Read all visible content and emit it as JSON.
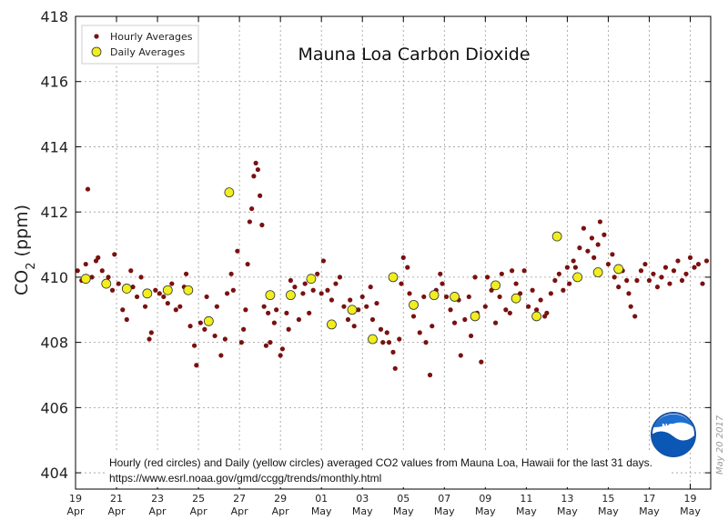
{
  "chart_data": {
    "type": "scatter",
    "title": "Mauna Loa Carbon Dioxide",
    "ylabel_main": "CO",
    "ylabel_sub": "2",
    "ylabel_unit": " (ppm)",
    "ylim": [
      403.5,
      418
    ],
    "yticks": [
      "404",
      "406",
      "408",
      "410",
      "412",
      "414",
      "416",
      "418"
    ],
    "xlim": [
      0,
      31
    ],
    "xticks": [
      {
        "day": "19",
        "month": "Apr"
      },
      {
        "day": "21",
        "month": "Apr"
      },
      {
        "day": "23",
        "month": "Apr"
      },
      {
        "day": "25",
        "month": "Apr"
      },
      {
        "day": "27",
        "month": "Apr"
      },
      {
        "day": "29",
        "month": "Apr"
      },
      {
        "day": "01",
        "month": "May"
      },
      {
        "day": "03",
        "month": "May"
      },
      {
        "day": "05",
        "month": "May"
      },
      {
        "day": "07",
        "month": "May"
      },
      {
        "day": "09",
        "month": "May"
      },
      {
        "day": "11",
        "month": "May"
      },
      {
        "day": "13",
        "month": "May"
      },
      {
        "day": "15",
        "month": "May"
      },
      {
        "day": "17",
        "month": "May"
      },
      {
        "day": "19",
        "month": "May"
      }
    ],
    "grid": true,
    "legend_position": "top-left",
    "colors": {
      "hourly": "#7a1010",
      "daily": "#f0ee1e"
    },
    "series": [
      {
        "name": "Hourly Averages",
        "points": [
          [
            0.1,
            410.2
          ],
          [
            0.3,
            409.9
          ],
          [
            0.5,
            410.4
          ],
          [
            0.6,
            412.7
          ],
          [
            0.8,
            410.0
          ],
          [
            1.0,
            410.5
          ],
          [
            1.1,
            410.6
          ],
          [
            1.3,
            410.2
          ],
          [
            1.6,
            410.0
          ],
          [
            1.8,
            409.6
          ],
          [
            1.9,
            410.7
          ],
          [
            2.1,
            409.8
          ],
          [
            2.3,
            409.0
          ],
          [
            2.5,
            408.7
          ],
          [
            2.7,
            410.2
          ],
          [
            2.8,
            409.7
          ],
          [
            3.0,
            409.4
          ],
          [
            3.2,
            410.0
          ],
          [
            3.4,
            409.1
          ],
          [
            3.6,
            408.1
          ],
          [
            3.7,
            408.3
          ],
          [
            3.9,
            409.6
          ],
          [
            4.1,
            409.5
          ],
          [
            4.3,
            409.4
          ],
          [
            4.5,
            409.2
          ],
          [
            4.7,
            409.8
          ],
          [
            4.9,
            409.0
          ],
          [
            5.1,
            409.1
          ],
          [
            5.3,
            409.7
          ],
          [
            5.4,
            410.1
          ],
          [
            5.6,
            408.5
          ],
          [
            5.8,
            407.9
          ],
          [
            5.9,
            407.3
          ],
          [
            6.1,
            408.6
          ],
          [
            6.3,
            408.4
          ],
          [
            6.4,
            409.4
          ],
          [
            6.6,
            408.7
          ],
          [
            6.8,
            408.2
          ],
          [
            6.9,
            409.1
          ],
          [
            7.1,
            407.6
          ],
          [
            7.3,
            408.1
          ],
          [
            7.4,
            409.5
          ],
          [
            7.6,
            410.1
          ],
          [
            7.7,
            409.6
          ],
          [
            7.9,
            410.8
          ],
          [
            8.1,
            408.0
          ],
          [
            8.2,
            408.4
          ],
          [
            8.3,
            409.0
          ],
          [
            8.4,
            410.4
          ],
          [
            8.5,
            411.7
          ],
          [
            8.6,
            412.1
          ],
          [
            8.7,
            413.1
          ],
          [
            8.8,
            413.5
          ],
          [
            8.9,
            413.3
          ],
          [
            9.0,
            412.5
          ],
          [
            9.1,
            411.6
          ],
          [
            9.2,
            409.1
          ],
          [
            9.3,
            407.9
          ],
          [
            9.4,
            408.9
          ],
          [
            9.5,
            408.0
          ],
          [
            9.7,
            408.6
          ],
          [
            9.8,
            409.0
          ],
          [
            10.0,
            407.6
          ],
          [
            10.1,
            407.8
          ],
          [
            10.3,
            408.9
          ],
          [
            10.4,
            408.4
          ],
          [
            10.5,
            409.9
          ],
          [
            10.7,
            409.7
          ],
          [
            10.9,
            408.7
          ],
          [
            11.1,
            409.5
          ],
          [
            11.2,
            409.8
          ],
          [
            11.4,
            408.9
          ],
          [
            11.6,
            409.6
          ],
          [
            11.8,
            410.1
          ],
          [
            12.0,
            409.5
          ],
          [
            12.1,
            410.5
          ],
          [
            12.3,
            409.6
          ],
          [
            12.5,
            409.3
          ],
          [
            12.7,
            409.8
          ],
          [
            12.9,
            410.0
          ],
          [
            13.1,
            409.1
          ],
          [
            13.3,
            408.7
          ],
          [
            13.4,
            409.3
          ],
          [
            13.6,
            408.5
          ],
          [
            13.8,
            409.0
          ],
          [
            14.0,
            409.4
          ],
          [
            14.2,
            409.1
          ],
          [
            14.4,
            409.7
          ],
          [
            14.5,
            408.7
          ],
          [
            14.7,
            409.2
          ],
          [
            14.9,
            408.4
          ],
          [
            15.0,
            408.0
          ],
          [
            15.2,
            408.3
          ],
          [
            15.3,
            408.0
          ],
          [
            15.5,
            407.7
          ],
          [
            15.6,
            407.2
          ],
          [
            15.8,
            408.1
          ],
          [
            15.9,
            409.8
          ],
          [
            16.0,
            410.6
          ],
          [
            16.2,
            410.3
          ],
          [
            16.3,
            409.5
          ],
          [
            16.5,
            408.8
          ],
          [
            16.6,
            409.2
          ],
          [
            16.8,
            408.3
          ],
          [
            17.0,
            409.4
          ],
          [
            17.1,
            408.0
          ],
          [
            17.3,
            407.0
          ],
          [
            17.4,
            408.5
          ],
          [
            17.6,
            409.6
          ],
          [
            17.8,
            410.1
          ],
          [
            17.9,
            409.8
          ],
          [
            18.1,
            409.4
          ],
          [
            18.3,
            409.0
          ],
          [
            18.5,
            408.6
          ],
          [
            18.7,
            409.3
          ],
          [
            18.8,
            407.6
          ],
          [
            19.0,
            408.7
          ],
          [
            19.2,
            409.4
          ],
          [
            19.3,
            408.2
          ],
          [
            19.5,
            410.0
          ],
          [
            19.6,
            408.9
          ],
          [
            19.8,
            407.4
          ],
          [
            20.0,
            409.1
          ],
          [
            20.1,
            410.0
          ],
          [
            20.3,
            409.6
          ],
          [
            20.5,
            408.6
          ],
          [
            20.7,
            409.4
          ],
          [
            20.8,
            410.1
          ],
          [
            21.0,
            409.0
          ],
          [
            21.2,
            408.9
          ],
          [
            21.3,
            410.2
          ],
          [
            21.5,
            409.8
          ],
          [
            21.7,
            409.5
          ],
          [
            21.9,
            410.2
          ],
          [
            22.1,
            409.1
          ],
          [
            22.3,
            409.6
          ],
          [
            22.5,
            409.0
          ],
          [
            22.7,
            409.3
          ],
          [
            22.9,
            408.8
          ],
          [
            23.0,
            408.9
          ],
          [
            23.2,
            409.5
          ],
          [
            23.4,
            409.9
          ],
          [
            23.6,
            410.1
          ],
          [
            23.8,
            409.6
          ],
          [
            24.0,
            410.3
          ],
          [
            24.1,
            409.8
          ],
          [
            24.3,
            410.5
          ],
          [
            24.4,
            410.3
          ],
          [
            24.6,
            410.9
          ],
          [
            24.8,
            411.5
          ],
          [
            25.0,
            410.8
          ],
          [
            25.2,
            411.2
          ],
          [
            25.3,
            410.6
          ],
          [
            25.5,
            411.0
          ],
          [
            25.6,
            411.7
          ],
          [
            25.8,
            411.3
          ],
          [
            26.0,
            410.4
          ],
          [
            26.2,
            410.7
          ],
          [
            26.3,
            410.0
          ],
          [
            26.5,
            409.7
          ],
          [
            26.7,
            410.2
          ],
          [
            26.9,
            409.9
          ],
          [
            27.0,
            409.5
          ],
          [
            27.1,
            409.1
          ],
          [
            27.3,
            408.8
          ],
          [
            27.4,
            409.9
          ],
          [
            27.6,
            410.2
          ],
          [
            27.8,
            410.4
          ],
          [
            28.0,
            409.9
          ],
          [
            28.2,
            410.1
          ],
          [
            28.4,
            409.7
          ],
          [
            28.6,
            410.0
          ],
          [
            28.8,
            410.3
          ],
          [
            29.0,
            409.8
          ],
          [
            29.2,
            410.2
          ],
          [
            29.4,
            410.5
          ],
          [
            29.6,
            409.9
          ],
          [
            29.8,
            410.1
          ],
          [
            30.0,
            410.6
          ],
          [
            30.2,
            410.3
          ],
          [
            30.4,
            410.4
          ],
          [
            30.6,
            409.8
          ],
          [
            30.8,
            410.5
          ]
        ]
      },
      {
        "name": "Daily Averages",
        "points": [
          [
            0.5,
            409.95
          ],
          [
            1.5,
            409.8
          ],
          [
            2.5,
            409.65
          ],
          [
            3.5,
            409.5
          ],
          [
            4.5,
            409.6
          ],
          [
            5.5,
            409.6
          ],
          [
            6.5,
            408.65
          ],
          [
            7.5,
            412.6
          ],
          [
            9.5,
            409.45
          ],
          [
            10.5,
            409.45
          ],
          [
            11.5,
            409.95
          ],
          [
            12.5,
            408.55
          ],
          [
            13.5,
            409.0
          ],
          [
            14.5,
            408.1
          ],
          [
            15.5,
            410.0
          ],
          [
            16.5,
            409.15
          ],
          [
            17.5,
            409.45
          ],
          [
            18.5,
            409.4
          ],
          [
            19.5,
            408.8
          ],
          [
            20.5,
            409.75
          ],
          [
            21.5,
            409.35
          ],
          [
            22.5,
            408.8
          ],
          [
            23.5,
            411.25
          ],
          [
            24.5,
            410.0
          ],
          [
            25.5,
            410.15
          ],
          [
            26.5,
            410.25
          ]
        ]
      }
    ]
  },
  "annotation": {
    "line1": "Hourly (red circles) and Daily (yellow circles) averaged CO2 values from Mauna Loa, Hawaii for the last 31 days.",
    "line2": "https://www.esrl.noaa.gov/gmd/ccgg/trends/monthly.html"
  },
  "logo": {
    "text": "NOAA"
  },
  "date_stamp": "May 20 2017"
}
